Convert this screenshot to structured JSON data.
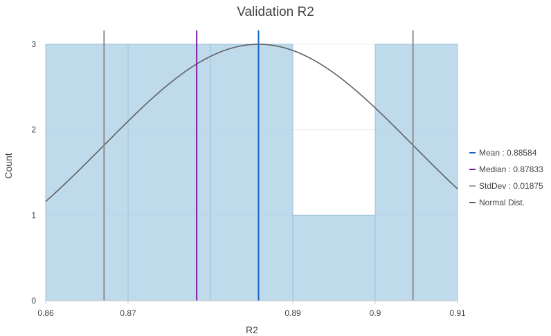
{
  "chart_data": {
    "type": "bar",
    "title": "Validation R2",
    "xlabel": "R2",
    "ylabel": "Count",
    "xlim": [
      0.86,
      0.91
    ],
    "ylim": [
      0,
      3
    ],
    "x_ticks": [
      "0.86",
      "0.87",
      "0.89",
      "0.9",
      "0.91"
    ],
    "x_tick_values": [
      0.86,
      0.87,
      0.89,
      0.9,
      0.91
    ],
    "y_ticks": [
      "0",
      "1",
      "2",
      "3"
    ],
    "y_tick_values": [
      0,
      1,
      2,
      3
    ],
    "bins": [
      {
        "start": 0.86,
        "end": 0.87,
        "count": 3
      },
      {
        "start": 0.87,
        "end": 0.88,
        "count": 3
      },
      {
        "start": 0.88,
        "end": 0.89,
        "count": 3
      },
      {
        "start": 0.89,
        "end": 0.9,
        "count": 1
      },
      {
        "start": 0.9,
        "end": 0.91,
        "count": 3
      }
    ],
    "mean": 0.88584,
    "median": 0.87833,
    "stddev": 0.01875,
    "normal_peak": 3,
    "grid": "horizontal",
    "legend_position": "right",
    "legend": [
      {
        "key": "mean",
        "label": "Mean : 0.88584",
        "color": "#1565c0"
      },
      {
        "key": "median",
        "label": "Median : 0.87833",
        "color": "#7b1fa2"
      },
      {
        "key": "stddev",
        "label": "StdDev : 0.01875",
        "color": "#9e9e9e"
      },
      {
        "key": "normal",
        "label": "Normal Dist.",
        "color": "#616161"
      }
    ],
    "colors": {
      "bar_fill": "#aed1e6",
      "bar_stroke": "#9cc2d8",
      "mean": "#1565c0",
      "median": "#7b1fa2",
      "stddev": "#8c8c8c",
      "normal": "#616161",
      "axis": "#c8c8c8",
      "grid": "#ececec"
    }
  }
}
